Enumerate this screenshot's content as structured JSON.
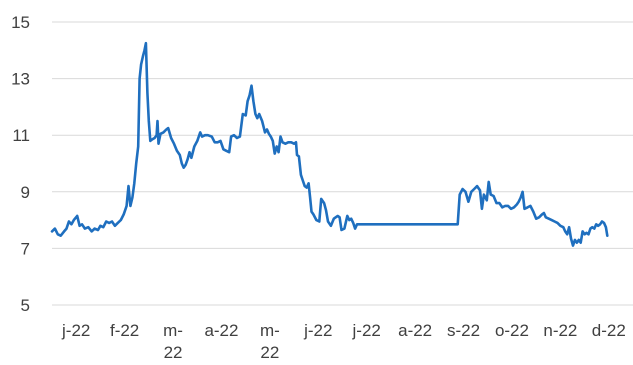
{
  "chart_data": {
    "type": "line",
    "title": "",
    "xlabel": "",
    "ylabel": "",
    "ylim": [
      5,
      15
    ],
    "y_ticks": [
      5,
      7,
      9,
      11,
      13,
      15
    ],
    "grid": "horizontal",
    "legend": "none",
    "colors": {
      "series": "#1f6fbf",
      "grid": "#d9d9d9",
      "text": "#404040"
    },
    "x_ticks": [
      {
        "x": 0,
        "label": [
          "j-22"
        ]
      },
      {
        "x": 1,
        "label": [
          "f-22"
        ]
      },
      {
        "x": 2,
        "label": [
          "m-",
          "22"
        ]
      },
      {
        "x": 3,
        "label": [
          "a-22"
        ]
      },
      {
        "x": 4,
        "label": [
          "m-",
          "22"
        ]
      },
      {
        "x": 5,
        "label": [
          "j-22"
        ]
      },
      {
        "x": 6,
        "label": [
          "j-22"
        ]
      },
      {
        "x": 7,
        "label": [
          "a-22"
        ]
      },
      {
        "x": 8,
        "label": [
          "s-22"
        ]
      },
      {
        "x": 9,
        "label": [
          "o-22"
        ]
      },
      {
        "x": 10,
        "label": [
          "n-22"
        ]
      },
      {
        "x": 11,
        "label": [
          "d-22"
        ]
      }
    ],
    "x_range": [
      0,
      12
    ],
    "series": [
      {
        "values": [
          [
            0.0,
            7.6
          ],
          [
            0.06,
            7.7
          ],
          [
            0.12,
            7.5
          ],
          [
            0.18,
            7.45
          ],
          [
            0.25,
            7.6
          ],
          [
            0.3,
            7.7
          ],
          [
            0.35,
            7.95
          ],
          [
            0.4,
            7.85
          ],
          [
            0.45,
            8.0
          ],
          [
            0.52,
            8.15
          ],
          [
            0.57,
            7.8
          ],
          [
            0.62,
            7.85
          ],
          [
            0.68,
            7.7
          ],
          [
            0.75,
            7.75
          ],
          [
            0.82,
            7.6
          ],
          [
            0.88,
            7.7
          ],
          [
            0.95,
            7.65
          ],
          [
            1.0,
            7.8
          ],
          [
            1.06,
            7.75
          ],
          [
            1.12,
            7.95
          ],
          [
            1.18,
            7.9
          ],
          [
            1.24,
            7.95
          ],
          [
            1.3,
            7.8
          ],
          [
            1.36,
            7.9
          ],
          [
            1.42,
            8.0
          ],
          [
            1.48,
            8.2
          ],
          [
            1.54,
            8.5
          ],
          [
            1.58,
            9.2
          ],
          [
            1.62,
            8.5
          ],
          [
            1.66,
            8.8
          ],
          [
            1.7,
            9.3
          ],
          [
            1.74,
            10.0
          ],
          [
            1.78,
            10.6
          ],
          [
            1.81,
            13.0
          ],
          [
            1.84,
            13.5
          ],
          [
            1.88,
            13.8
          ],
          [
            1.91,
            14.0
          ],
          [
            1.94,
            14.25
          ],
          [
            1.97,
            12.5
          ],
          [
            2.0,
            11.5
          ],
          [
            2.03,
            10.8
          ],
          [
            2.07,
            10.85
          ],
          [
            2.12,
            10.9
          ],
          [
            2.16,
            11.0
          ],
          [
            2.18,
            11.5
          ],
          [
            2.2,
            10.7
          ],
          [
            2.24,
            11.05
          ],
          [
            2.3,
            11.1
          ],
          [
            2.36,
            11.2
          ],
          [
            2.4,
            11.25
          ],
          [
            2.46,
            10.9
          ],
          [
            2.52,
            10.7
          ],
          [
            2.58,
            10.45
          ],
          [
            2.64,
            10.3
          ],
          [
            2.68,
            10.0
          ],
          [
            2.72,
            9.85
          ],
          [
            2.76,
            9.95
          ],
          [
            2.8,
            10.15
          ],
          [
            2.84,
            10.4
          ],
          [
            2.88,
            10.2
          ],
          [
            2.94,
            10.6
          ],
          [
            3.0,
            10.8
          ],
          [
            3.06,
            11.1
          ],
          [
            3.1,
            10.95
          ],
          [
            3.16,
            11.0
          ],
          [
            3.22,
            11.0
          ],
          [
            3.3,
            10.95
          ],
          [
            3.36,
            10.75
          ],
          [
            3.42,
            10.75
          ],
          [
            3.48,
            10.8
          ],
          [
            3.54,
            10.5
          ],
          [
            3.6,
            10.45
          ],
          [
            3.66,
            10.4
          ],
          [
            3.7,
            10.95
          ],
          [
            3.76,
            11.0
          ],
          [
            3.82,
            10.9
          ],
          [
            3.88,
            10.95
          ],
          [
            3.94,
            11.75
          ],
          [
            4.0,
            11.7
          ],
          [
            4.04,
            12.2
          ],
          [
            4.08,
            12.4
          ],
          [
            4.12,
            12.75
          ],
          [
            4.16,
            12.2
          ],
          [
            4.2,
            11.75
          ],
          [
            4.24,
            11.6
          ],
          [
            4.28,
            11.75
          ],
          [
            4.34,
            11.5
          ],
          [
            4.4,
            11.1
          ],
          [
            4.44,
            11.2
          ],
          [
            4.48,
            11.05
          ],
          [
            4.52,
            10.95
          ],
          [
            4.56,
            10.8
          ],
          [
            4.6,
            10.35
          ],
          [
            4.64,
            10.6
          ],
          [
            4.68,
            10.4
          ],
          [
            4.72,
            10.95
          ],
          [
            4.76,
            10.75
          ],
          [
            4.82,
            10.7
          ],
          [
            4.88,
            10.75
          ],
          [
            4.94,
            10.75
          ],
          [
            5.0,
            10.7
          ],
          [
            5.04,
            10.75
          ],
          [
            5.06,
            10.3
          ],
          [
            5.1,
            10.25
          ],
          [
            5.14,
            9.6
          ],
          [
            5.18,
            9.4
          ],
          [
            5.22,
            9.2
          ],
          [
            5.26,
            9.15
          ],
          [
            5.3,
            9.3
          ],
          [
            5.33,
            8.8
          ],
          [
            5.36,
            8.3
          ],
          [
            5.4,
            8.2
          ],
          [
            5.46,
            8.0
          ],
          [
            5.52,
            7.95
          ],
          [
            5.56,
            8.75
          ],
          [
            5.62,
            8.6
          ],
          [
            5.66,
            8.35
          ],
          [
            5.7,
            7.95
          ],
          [
            5.76,
            7.8
          ],
          [
            5.82,
            8.05
          ],
          [
            5.86,
            8.1
          ],
          [
            5.9,
            8.15
          ],
          [
            5.94,
            8.1
          ],
          [
            5.98,
            7.65
          ],
          [
            6.04,
            7.7
          ],
          [
            6.1,
            8.15
          ],
          [
            6.14,
            8.0
          ],
          [
            6.18,
            8.05
          ],
          [
            6.22,
            7.9
          ],
          [
            6.26,
            7.7
          ],
          [
            6.3,
            7.85
          ],
          [
            7.0,
            7.85
          ],
          [
            7.5,
            7.85
          ],
          [
            8.0,
            7.85
          ],
          [
            8.38,
            7.85
          ],
          [
            8.42,
            8.9
          ],
          [
            8.48,
            9.1
          ],
          [
            8.54,
            9.0
          ],
          [
            8.6,
            8.65
          ],
          [
            8.66,
            9.0
          ],
          [
            8.72,
            9.1
          ],
          [
            8.78,
            9.2
          ],
          [
            8.84,
            9.05
          ],
          [
            8.88,
            8.4
          ],
          [
            8.92,
            8.9
          ],
          [
            8.98,
            8.7
          ],
          [
            9.02,
            9.35
          ],
          [
            9.06,
            8.9
          ],
          [
            9.12,
            8.85
          ],
          [
            9.18,
            8.6
          ],
          [
            9.24,
            8.6
          ],
          [
            9.3,
            8.45
          ],
          [
            9.36,
            8.5
          ],
          [
            9.42,
            8.5
          ],
          [
            9.48,
            8.4
          ],
          [
            9.54,
            8.45
          ],
          [
            9.6,
            8.55
          ],
          [
            9.64,
            8.65
          ],
          [
            9.68,
            8.8
          ],
          [
            9.72,
            9.0
          ],
          [
            9.76,
            8.4
          ],
          [
            9.82,
            8.45
          ],
          [
            9.88,
            8.5
          ],
          [
            9.94,
            8.3
          ],
          [
            10.0,
            8.05
          ],
          [
            10.06,
            8.1
          ],
          [
            10.12,
            8.2
          ],
          [
            10.16,
            8.25
          ],
          [
            10.2,
            8.1
          ],
          [
            10.26,
            8.05
          ],
          [
            10.32,
            8.0
          ],
          [
            10.38,
            7.95
          ],
          [
            10.44,
            7.9
          ],
          [
            10.5,
            7.8
          ],
          [
            10.56,
            7.75
          ],
          [
            10.6,
            7.6
          ],
          [
            10.64,
            7.5
          ],
          [
            10.68,
            7.75
          ],
          [
            10.72,
            7.35
          ],
          [
            10.76,
            7.1
          ],
          [
            10.8,
            7.3
          ],
          [
            10.84,
            7.2
          ],
          [
            10.88,
            7.3
          ],
          [
            10.92,
            7.2
          ],
          [
            10.96,
            7.6
          ],
          [
            11.0,
            7.5
          ],
          [
            11.04,
            7.55
          ],
          [
            11.08,
            7.5
          ],
          [
            11.12,
            7.7
          ],
          [
            11.16,
            7.75
          ],
          [
            11.2,
            7.7
          ],
          [
            11.24,
            7.85
          ],
          [
            11.28,
            7.8
          ],
          [
            11.32,
            7.85
          ],
          [
            11.36,
            7.95
          ],
          [
            11.4,
            7.9
          ],
          [
            11.44,
            7.75
          ],
          [
            11.47,
            7.45
          ]
        ]
      }
    ]
  }
}
